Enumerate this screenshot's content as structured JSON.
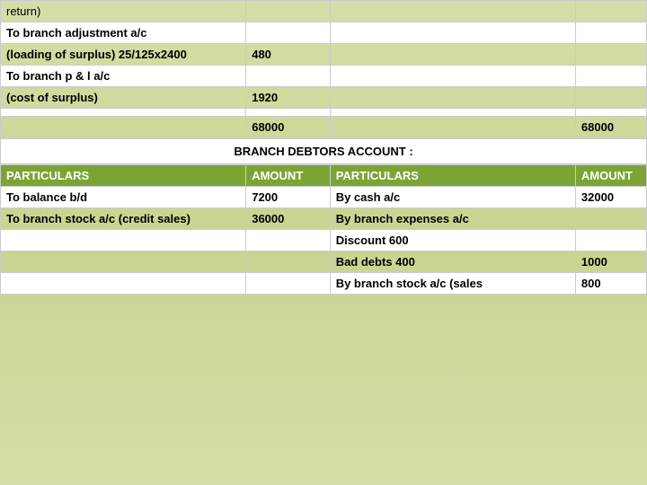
{
  "upper": {
    "rows": [
      {
        "c1": "return)",
        "c2": "",
        "c3": "",
        "c4": "",
        "cls": ""
      },
      {
        "c1": "To branch adjustment a/c",
        "c2": "",
        "c3": "",
        "c4": "",
        "cls": "white-row bold"
      },
      {
        "c1": "(loading of surplus) 25/125x2400",
        "c2": "480",
        "c3": "",
        "c4": "",
        "cls": "bold"
      },
      {
        "c1": "To branch p & l a/c",
        "c2": "",
        "c3": "",
        "c4": "",
        "cls": "white-row bold"
      },
      {
        "c1": "(cost of surplus)",
        "c2": "1920",
        "c3": "",
        "c4": "",
        "cls": "bold"
      },
      {
        "c1": "",
        "c2": "",
        "c3": "",
        "c4": "",
        "cls": "white-row"
      },
      {
        "c1": "",
        "c2": "68000",
        "c3": "",
        "c4": "68000",
        "cls": "bold"
      }
    ]
  },
  "section_title": "BRANCH DEBTORS ACCOUNT :",
  "debtors": {
    "headers": [
      "PARTICULARS",
      "AMOUNT",
      "PARTICULARS",
      "AMOUNT"
    ],
    "rows": [
      {
        "c1": "To balance b/d",
        "c2": "7200",
        "c3": "By cash a/c",
        "c4": "32000",
        "cls": "white-row bold"
      },
      {
        "c1": "To branch stock a/c (credit sales)",
        "c2": "36000",
        "c3": "By branch expenses a/c",
        "c4": "",
        "cls": "bold"
      },
      {
        "c1": "",
        "c2": "",
        "c3": "Discount                              600",
        "c4": "",
        "cls": "white-row bold"
      },
      {
        "c1": "",
        "c2": "",
        "c3": "Bad debts                            400",
        "c4": "1000",
        "cls": "bold"
      },
      {
        "c1": "",
        "c2": "",
        "c3": "By branch stock a/c  (sales",
        "c4": "800",
        "cls": "white-row bold"
      }
    ]
  }
}
